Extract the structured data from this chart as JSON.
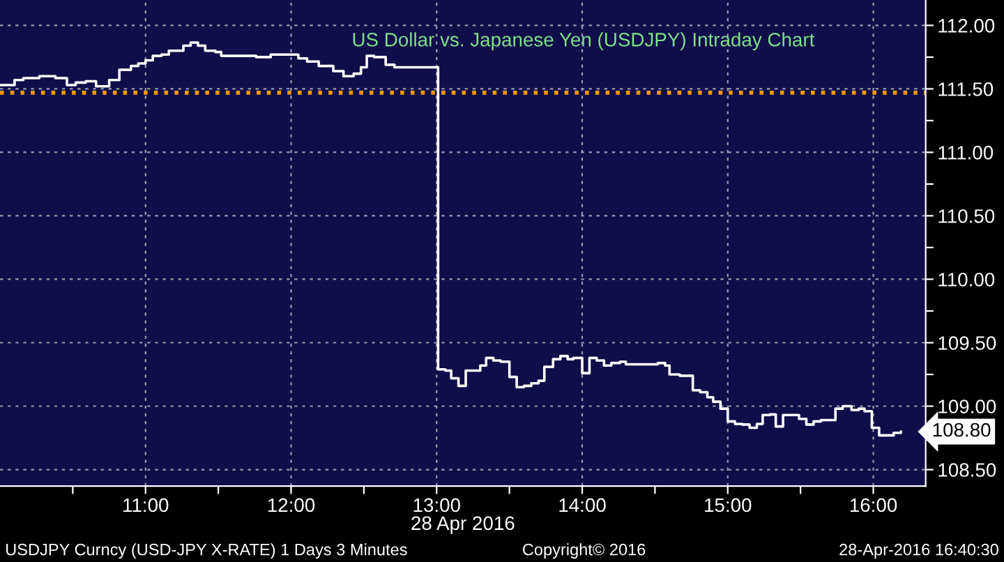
{
  "chart_data": {
    "type": "step",
    "title": "US Dollar vs. Japanese Yen (USDJPY) Intraday Chart",
    "xlabel": "28 Apr 2016",
    "annotations": [
      "USDJPY Curncy (USD-JPY X-RATE) 1 Days 3 Minutes",
      "Copyright© 2016",
      "28-Apr-2016 16:40:30",
      {
        "text": "108.80",
        "x": 16.19,
        "y": 108.8
      }
    ],
    "series": [
      {
        "color": "#ffffff",
        "x": [
          10.0,
          10.1,
          10.16,
          10.27,
          10.38,
          10.46,
          10.52,
          10.59,
          10.66,
          10.75,
          10.82,
          10.9,
          10.95,
          11.0,
          11.05,
          11.11,
          11.16,
          11.21,
          11.26,
          11.31,
          11.36,
          11.41,
          11.48,
          11.52,
          11.62,
          11.76,
          11.86,
          11.95,
          12.05,
          12.11,
          12.19,
          12.29,
          12.36,
          12.43,
          12.48,
          12.52,
          12.57,
          12.65,
          12.71,
          12.81,
          12.9,
          13.0,
          13.01,
          13.06,
          13.1,
          13.15,
          13.2,
          13.25,
          13.3,
          13.34,
          13.39,
          13.44,
          13.5,
          13.55,
          13.6,
          13.65,
          13.7,
          13.74,
          13.8,
          13.85,
          13.9,
          13.94,
          14.0,
          14.05,
          14.1,
          14.15,
          14.2,
          14.26,
          14.3,
          14.36,
          14.41,
          14.47,
          14.52,
          14.57,
          14.6,
          14.67,
          14.71,
          14.76,
          14.81,
          14.86,
          14.9,
          14.95,
          15.0,
          15.05,
          15.1,
          15.15,
          15.2,
          15.24,
          15.29,
          15.33,
          15.38,
          15.44,
          15.49,
          15.54,
          15.59,
          15.64,
          15.69,
          15.74,
          15.79,
          15.85,
          15.9,
          15.94,
          15.99,
          16.04,
          16.1,
          16.14,
          16.19
        ],
        "values": [
          111.53,
          111.57,
          111.585,
          111.6,
          111.585,
          111.53,
          111.55,
          111.56,
          111.52,
          111.57,
          111.65,
          111.68,
          111.7,
          111.725,
          111.76,
          111.77,
          111.8,
          111.8,
          111.84,
          111.865,
          111.84,
          111.8,
          111.79,
          111.76,
          111.76,
          111.75,
          111.77,
          111.77,
          111.74,
          111.715,
          111.68,
          111.64,
          111.6,
          111.62,
          111.67,
          111.76,
          111.75,
          111.69,
          111.67,
          111.67,
          111.67,
          111.67,
          109.29,
          109.28,
          109.22,
          109.16,
          109.28,
          109.28,
          109.32,
          109.38,
          109.36,
          109.35,
          109.23,
          109.15,
          109.16,
          109.18,
          109.2,
          109.31,
          109.37,
          109.395,
          109.37,
          109.38,
          109.26,
          109.38,
          109.36,
          109.32,
          109.34,
          109.35,
          109.33,
          109.33,
          109.33,
          109.33,
          109.34,
          109.32,
          109.25,
          109.24,
          109.24,
          109.125,
          109.11,
          109.07,
          109.035,
          108.98,
          108.88,
          108.86,
          108.855,
          108.83,
          108.86,
          108.93,
          108.935,
          108.84,
          108.93,
          108.93,
          108.9,
          108.855,
          108.88,
          108.89,
          108.89,
          108.98,
          109.0,
          108.97,
          108.98,
          108.96,
          108.83,
          108.77,
          108.77,
          108.79,
          108.8
        ]
      }
    ],
    "xlim": [
      10.0,
      16.36
    ],
    "ylim": [
      108.37,
      112.2
    ],
    "xticks": [
      {
        "value": 10.5,
        "label": null
      },
      {
        "value": 11,
        "label": "11:00"
      },
      {
        "value": 11.5,
        "label": null
      },
      {
        "value": 12,
        "label": "12:00"
      },
      {
        "value": 12.5,
        "label": null
      },
      {
        "value": 13,
        "label": "13:00"
      },
      {
        "value": 13.5,
        "label": null
      },
      {
        "value": 14,
        "label": "14:00"
      },
      {
        "value": 14.5,
        "label": null
      },
      {
        "value": 15,
        "label": "15:00"
      },
      {
        "value": 15.5,
        "label": null
      },
      {
        "value": 16,
        "label": "16:00"
      }
    ],
    "yticks": [
      {
        "value": 108.5,
        "label": "108.50"
      },
      {
        "value": 108.75,
        "label": null
      },
      {
        "value": 109,
        "label": "109.00"
      },
      {
        "value": 109.25,
        "label": null
      },
      {
        "value": 109.5,
        "label": "109.50"
      },
      {
        "value": 109.75,
        "label": null
      },
      {
        "value": 110,
        "label": "110.00"
      },
      {
        "value": 110.25,
        "label": null
      },
      {
        "value": 110.5,
        "label": "110.50"
      },
      {
        "value": 110.75,
        "label": null
      },
      {
        "value": 111,
        "label": "111.00"
      },
      {
        "value": 111.25,
        "label": null
      },
      {
        "value": 111.5,
        "label": "111.50"
      },
      {
        "value": 111.75,
        "label": null
      },
      {
        "value": 112,
        "label": "112.00"
      }
    ],
    "ref_lines": [
      {
        "axis": "y",
        "value": 111.47,
        "color": "#ff9900",
        "line_style": "dotted"
      }
    ],
    "grid": true,
    "legend": false,
    "marker": "none",
    "line_style": "solid"
  }
}
